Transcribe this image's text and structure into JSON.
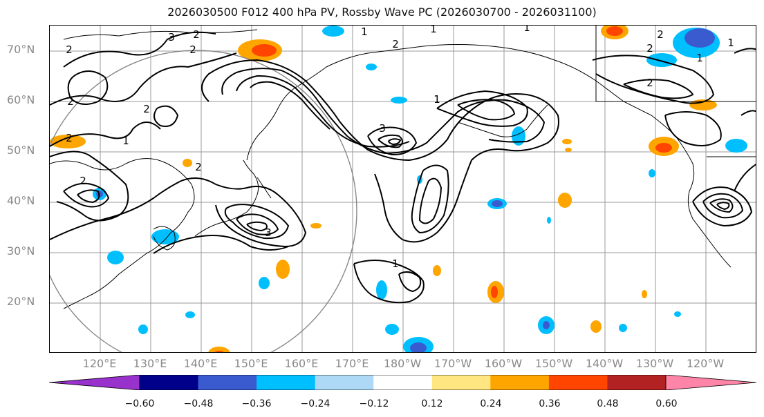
{
  "title": "2026030500 F012 400 hPa PV, Rossby Wave PC (2026030700 - 2026031100)",
  "lat_labels": [
    "70°N",
    "60°N",
    "50°N",
    "40°N",
    "30°N",
    "20°N"
  ],
  "lon_labels": [
    "120°E",
    "130°E",
    "140°E",
    "150°E",
    "160°E",
    "170°E",
    "180°W",
    "170°W",
    "160°W",
    "150°W",
    "140°W",
    "130°W",
    "120°W"
  ],
  "colorbar": {
    "tick_labels": [
      "−0.60",
      "−0.48",
      "−0.36",
      "−0.24",
      "−0.12",
      "0.12",
      "0.24",
      "0.36",
      "0.48",
      "0.60"
    ],
    "colors": [
      "#9932cc",
      "#00008b",
      "#3a5bcf",
      "#00bfff",
      "#add8f6",
      "#ffffff",
      "#ffe680",
      "#ffa500",
      "#ff4500",
      "#b22222",
      "#ff85a8"
    ]
  },
  "contour_labels": [
    "3",
    "2",
    "2",
    "2",
    "1",
    "2",
    "1",
    "3",
    "1",
    "2",
    "1",
    "2",
    "1",
    "1",
    "2",
    "2",
    "2",
    "3",
    "1",
    "2",
    "1",
    "2",
    "2"
  ]
}
